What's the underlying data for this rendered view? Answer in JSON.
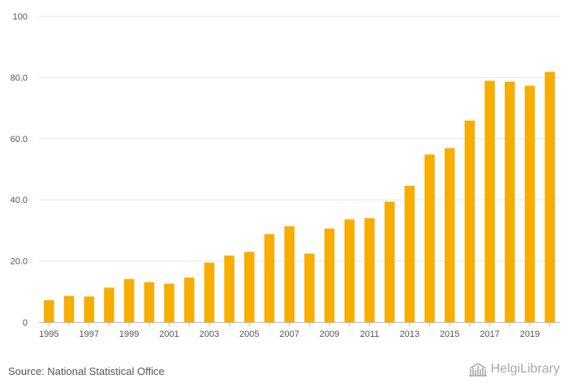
{
  "chart_data": {
    "type": "bar",
    "title": "",
    "xlabel": "",
    "ylabel": "",
    "ylim": [
      0,
      100
    ],
    "y_ticks": [
      0,
      20,
      40,
      60,
      80,
      100
    ],
    "y_tick_labels": [
      "0",
      "20.0",
      "40.0",
      "60.0",
      "80.0",
      "100"
    ],
    "categories": [
      "1995",
      "1996",
      "1997",
      "1998",
      "1999",
      "2000",
      "2001",
      "2002",
      "2003",
      "2004",
      "2005",
      "2006",
      "2007",
      "2008",
      "2009",
      "2010",
      "2011",
      "2012",
      "2013",
      "2014",
      "2015",
      "2016",
      "2017",
      "2018",
      "2019",
      "2020"
    ],
    "x_tick_labels": [
      "1995",
      "1997",
      "1999",
      "2001",
      "2003",
      "2005",
      "2007",
      "2009",
      "2011",
      "2013",
      "2015",
      "2017",
      "2019"
    ],
    "values": [
      7.2,
      8.6,
      8.4,
      11.3,
      14.1,
      13.1,
      12.6,
      14.6,
      19.5,
      21.8,
      23.0,
      28.8,
      31.4,
      22.4,
      30.6,
      33.6,
      34.0,
      39.4,
      44.6,
      54.8,
      56.9,
      65.9,
      78.9,
      78.6,
      77.3,
      81.8
    ],
    "bar_color": "#f7ae00",
    "grid": true
  },
  "footer": {
    "source": "Source: National Statistical Office",
    "brand": "HelgiLibrary"
  },
  "colors": {
    "bar": "#f7ae00",
    "grid": "#e6e6e6",
    "text": "#555555",
    "brand": "#a8a8a8"
  }
}
